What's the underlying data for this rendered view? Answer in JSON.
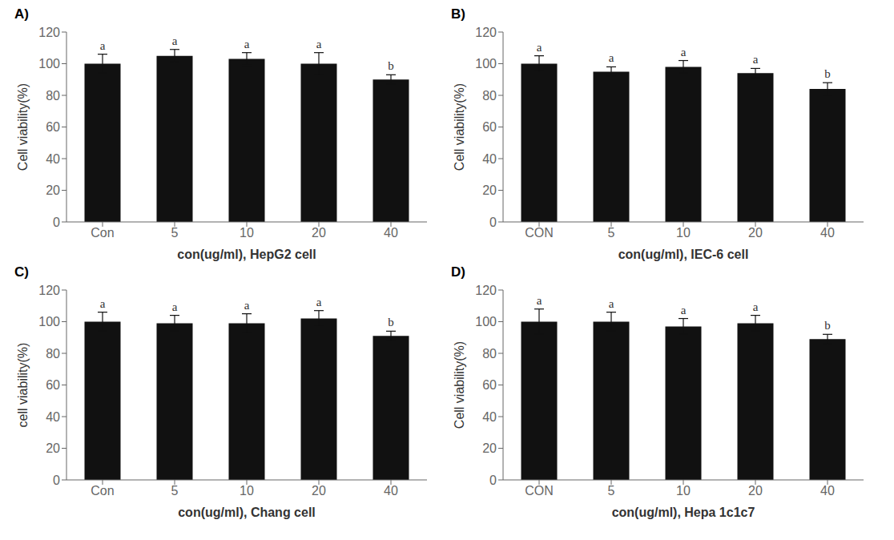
{
  "chart_data": [
    {
      "type": "bar",
      "title": "A)",
      "categories": [
        "Con",
        "5",
        "10",
        "20",
        "40"
      ],
      "values": [
        100,
        105,
        103,
        100,
        90
      ],
      "errors": [
        6,
        4,
        4,
        7,
        3
      ],
      "annotations": [
        "a",
        "a",
        "a",
        "a",
        "b"
      ],
      "ylabel": "Cell viability(%)",
      "xlabel": "con(ug/ml), HepG2 cell",
      "ylim": [
        0,
        120
      ],
      "yticks": [
        0,
        20,
        40,
        60,
        80,
        100,
        120
      ],
      "color": "#111111",
      "grid": false
    },
    {
      "type": "bar",
      "title": "B)",
      "categories": [
        "CON",
        "5",
        "10",
        "20",
        "40"
      ],
      "values": [
        100,
        95,
        98,
        94,
        84
      ],
      "errors": [
        5,
        3,
        4,
        3,
        4
      ],
      "annotations": [
        "a",
        "a",
        "a",
        "a",
        "b"
      ],
      "ylabel": "Cell viability(%)",
      "xlabel": "con(ug/ml), IEC-6 cell",
      "ylim": [
        0,
        120
      ],
      "yticks": [
        0,
        20,
        40,
        60,
        80,
        100,
        120
      ],
      "color": "#111111",
      "grid": false
    },
    {
      "type": "bar",
      "title": "C)",
      "categories": [
        "Con",
        "5",
        "10",
        "20",
        "40"
      ],
      "values": [
        100,
        99,
        99,
        102,
        91
      ],
      "errors": [
        6,
        5,
        6,
        5,
        3
      ],
      "annotations": [
        "a",
        "a",
        "a",
        "a",
        "b"
      ],
      "ylabel": "cell viability(%)",
      "xlabel": "con(ug/ml), Chang cell",
      "ylim": [
        0,
        120
      ],
      "yticks": [
        0,
        20,
        40,
        60,
        80,
        100,
        120
      ],
      "color": "#111111",
      "grid": false
    },
    {
      "type": "bar",
      "title": "D)",
      "categories": [
        "CON",
        "5",
        "10",
        "20",
        "40"
      ],
      "values": [
        100,
        100,
        97,
        99,
        89
      ],
      "errors": [
        8,
        6,
        5,
        5,
        3
      ],
      "annotations": [
        "a",
        "a",
        "a",
        "a",
        "b"
      ],
      "ylabel": "Cell viability(%)",
      "xlabel": "con(ug/ml), Hepa 1c1c7",
      "ylim": [
        0,
        120
      ],
      "yticks": [
        0,
        20,
        40,
        60,
        80,
        100,
        120
      ],
      "color": "#111111",
      "grid": false
    }
  ]
}
